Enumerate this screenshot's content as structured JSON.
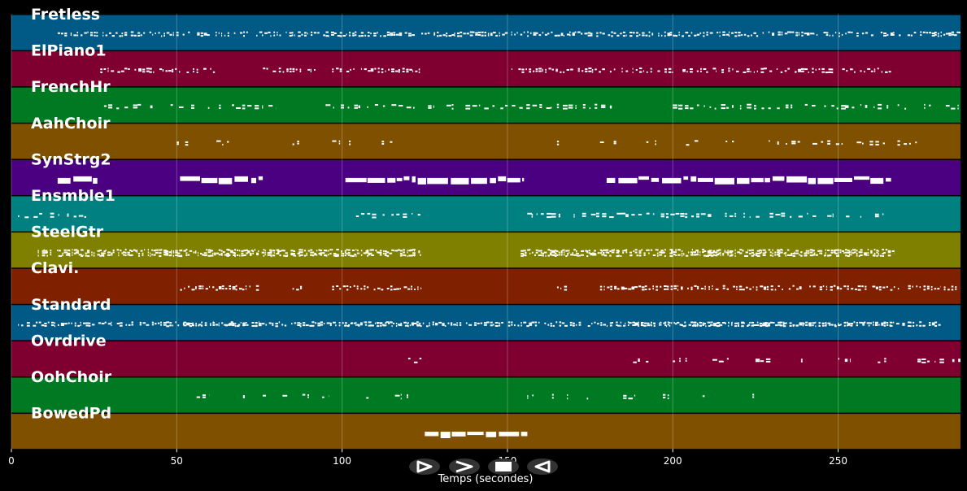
{
  "chart_data": {
    "type": "piano-roll",
    "xlabel": "Temps (secondes)",
    "xlim": [
      0,
      287
    ],
    "xticks": [
      0,
      50,
      100,
      150,
      200,
      250
    ],
    "grid": true,
    "tracks": [
      {
        "name": "Fretless",
        "color": "#005A85",
        "segments": [
          [
            14,
            281
          ],
          [
            281,
            287
          ]
        ],
        "density": "dense"
      },
      {
        "name": "ElPiano1",
        "color": "#7F0030",
        "segments": [
          [
            26,
            51
          ],
          [
            53,
            62
          ],
          [
            75,
            93
          ],
          [
            97,
            124
          ],
          [
            150,
            266
          ]
        ],
        "density": "medium"
      },
      {
        "name": "FrenchHr",
        "color": "#007A22",
        "segments": [
          [
            28,
            60
          ],
          [
            61,
            80
          ],
          [
            95,
            125
          ],
          [
            126,
            188
          ],
          [
            200,
            287
          ]
        ],
        "density": "sparse"
      },
      {
        "name": "AahChoir",
        "color": "#7E5000",
        "segments": [
          [
            50,
            54
          ],
          [
            62,
            66
          ],
          [
            85,
            87
          ],
          [
            97,
            103
          ],
          [
            112,
            116
          ],
          [
            165,
            168
          ],
          [
            178,
            184
          ],
          [
            192,
            195
          ],
          [
            204,
            208
          ],
          [
            216,
            220
          ],
          [
            229,
            275
          ]
        ],
        "density": "sparse"
      },
      {
        "name": "SynStrg2",
        "color": "#4B0082",
        "segments": [
          [
            14,
            26
          ],
          [
            51,
            76
          ],
          [
            101,
            155
          ],
          [
            180,
            266
          ]
        ],
        "density": "blocks"
      },
      {
        "name": "Ensmble1",
        "color": "#008080",
        "segments": [
          [
            2,
            26
          ],
          [
            100,
            124
          ],
          [
            156,
            266
          ]
        ],
        "density": "sparse"
      },
      {
        "name": "SteelGtr",
        "color": "#808000",
        "segments": [
          [
            8,
            124
          ],
          [
            154,
            267
          ]
        ],
        "density": "very-dense"
      },
      {
        "name": "Clavi.",
        "color": "#7F2000",
        "segments": [
          [
            51,
            75
          ],
          [
            85,
            88
          ],
          [
            97,
            124
          ],
          [
            165,
            168
          ],
          [
            178,
            281
          ],
          [
            281,
            287
          ]
        ],
        "density": "medium"
      },
      {
        "name": "Standard",
        "color": "#005A85",
        "segments": [
          [
            2,
            281
          ],
          [
            51,
            75
          ],
          [
            100,
            124
          ],
          [
            180,
            266
          ]
        ],
        "density": "dense"
      },
      {
        "name": "Ovrdrive",
        "color": "#7F0030",
        "segments": [
          [
            120,
            124
          ],
          [
            188,
            194
          ],
          [
            200,
            205
          ],
          [
            212,
            218
          ],
          [
            225,
            230
          ],
          [
            237,
            243
          ],
          [
            250,
            256
          ],
          [
            262,
            266
          ],
          [
            274,
            287
          ]
        ],
        "density": "sparse"
      },
      {
        "name": "OohChoir",
        "color": "#007A22",
        "segments": [
          [
            56,
            60
          ],
          [
            68,
            72
          ],
          [
            76,
            78
          ],
          [
            82,
            84
          ],
          [
            88,
            90
          ],
          [
            94,
            96
          ],
          [
            104,
            108
          ],
          [
            116,
            120
          ],
          [
            156,
            158
          ],
          [
            162,
            164
          ],
          [
            168,
            170
          ],
          [
            174,
            176
          ],
          [
            185,
            189
          ],
          [
            197,
            201
          ],
          [
            209,
            213
          ],
          [
            222,
            226
          ]
        ],
        "density": "sparse"
      },
      {
        "name": "BowedPd",
        "color": "#7E5000",
        "segments": [
          [
            125,
            156
          ]
        ],
        "density": "blocks"
      }
    ]
  },
  "controls": [
    {
      "name": "play-button",
      "glyph": "play"
    },
    {
      "name": "next-button",
      "glyph": "next"
    },
    {
      "name": "stop-button",
      "glyph": "stop"
    },
    {
      "name": "previous-button",
      "glyph": "previous"
    }
  ]
}
